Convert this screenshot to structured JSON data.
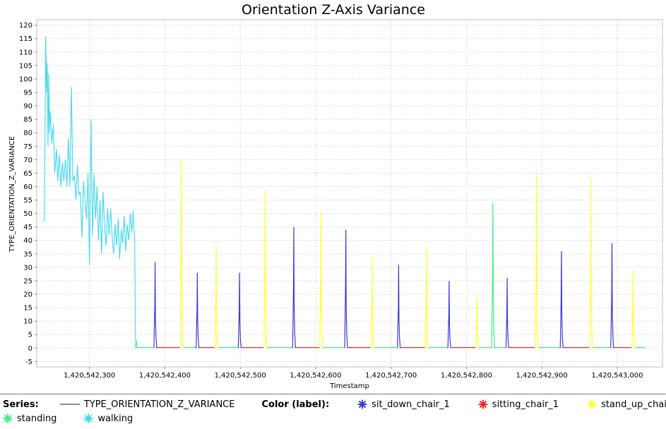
{
  "chart_data": {
    "type": "line",
    "title": "Orientation Z-Axis Variance",
    "xlabel": "Timestamp",
    "ylabel": "TYPE_ORIENTATION_Z_VARIANCE",
    "xlim": [
      1420542230,
      1420543060
    ],
    "ylim": [
      -7,
      122
    ],
    "x_ticks": [
      1420542300,
      1420542400,
      1420542500,
      1420542600,
      1420542700,
      1420542800,
      1420542900,
      1420543000
    ],
    "x_tick_labels": [
      "1,420,542,300",
      "1,420,542,400",
      "1,420,542,500",
      "1,420,542,600",
      "1,420,542,700",
      "1,420,542,800",
      "1,420,542,900",
      "1,420,543,000"
    ],
    "y_ticks": [
      -5,
      0,
      5,
      10,
      15,
      20,
      25,
      30,
      35,
      40,
      45,
      50,
      55,
      60,
      65,
      70,
      75,
      80,
      85,
      90,
      95,
      100,
      105,
      110,
      115,
      120
    ],
    "grid": true,
    "legend_position": "bottom",
    "colors": {
      "sit_down_chair_1": "#3a3ad6",
      "sitting_chair_1": "#ff2020",
      "stand_up_chair_1": "#ffff30",
      "standing": "#40ee80",
      "walking": "#40d8ee"
    },
    "walking_keypoints": [
      [
        1420542240,
        47
      ],
      [
        1420542241,
        80
      ],
      [
        1420542242,
        116
      ],
      [
        1420542243,
        95
      ],
      [
        1420542244,
        106
      ],
      [
        1420542245,
        75
      ],
      [
        1420542246,
        102
      ],
      [
        1420542247,
        80
      ],
      [
        1420542248,
        88
      ],
      [
        1420542250,
        76
      ],
      [
        1420542252,
        83
      ],
      [
        1420542254,
        65
      ],
      [
        1420542256,
        74
      ],
      [
        1420542258,
        62
      ],
      [
        1420542260,
        72
      ],
      [
        1420542262,
        60
      ],
      [
        1420542264,
        69
      ],
      [
        1420542266,
        62
      ],
      [
        1420542268,
        70
      ],
      [
        1420542270,
        60
      ],
      [
        1420542272,
        78
      ],
      [
        1420542274,
        60
      ],
      [
        1420542276,
        97
      ],
      [
        1420542278,
        62
      ],
      [
        1420542280,
        64
      ],
      [
        1420542282,
        55
      ],
      [
        1420542284,
        68
      ],
      [
        1420542286,
        57
      ],
      [
        1420542288,
        58
      ],
      [
        1420542290,
        41
      ],
      [
        1420542292,
        62
      ],
      [
        1420542294,
        55
      ],
      [
        1420542296,
        48
      ],
      [
        1420542298,
        65
      ],
      [
        1420542300,
        31
      ],
      [
        1420542302,
        85
      ],
      [
        1420542304,
        42
      ],
      [
        1420542306,
        65
      ],
      [
        1420542308,
        48
      ],
      [
        1420542310,
        60
      ],
      [
        1420542312,
        40
      ],
      [
        1420542314,
        55
      ],
      [
        1420542316,
        35
      ],
      [
        1420542318,
        58
      ],
      [
        1420542320,
        45
      ],
      [
        1420542322,
        38
      ],
      [
        1420542324,
        52
      ],
      [
        1420542326,
        42
      ],
      [
        1420542328,
        52
      ],
      [
        1420542330,
        42
      ],
      [
        1420542332,
        35
      ],
      [
        1420542334,
        46
      ],
      [
        1420542336,
        38
      ],
      [
        1420542338,
        48
      ],
      [
        1420542340,
        33
      ],
      [
        1420542342,
        44
      ],
      [
        1420542344,
        39
      ],
      [
        1420542346,
        49
      ],
      [
        1420542348,
        36
      ],
      [
        1420542350,
        46
      ],
      [
        1420542352,
        40
      ],
      [
        1420542354,
        50
      ],
      [
        1420542356,
        43
      ],
      [
        1420542358,
        51
      ],
      [
        1420542360,
        38
      ],
      [
        1420542361,
        3
      ],
      [
        1420542362,
        2
      ],
      [
        1420542363,
        0
      ]
    ],
    "peaks": [
      {
        "label": "standing",
        "x": 1420542362,
        "y": 3
      },
      {
        "label": "sit_down_chair_1",
        "x": 1420542387,
        "y": 32
      },
      {
        "label": "stand_up_chair_1",
        "x": 1420542422,
        "y": 70
      },
      {
        "label": "sit_down_chair_1",
        "x": 1420542443,
        "y": 28
      },
      {
        "label": "stand_up_chair_1",
        "x": 1420542468,
        "y": 38
      },
      {
        "label": "sit_down_chair_1",
        "x": 1420542499,
        "y": 28
      },
      {
        "label": "stand_up_chair_1",
        "x": 1420542533,
        "y": 59
      },
      {
        "label": "sit_down_chair_1",
        "x": 1420542571,
        "y": 45
      },
      {
        "label": "stand_up_chair_1",
        "x": 1420542607,
        "y": 50
      },
      {
        "label": "sit_down_chair_1",
        "x": 1420542640,
        "y": 44
      },
      {
        "label": "stand_up_chair_1",
        "x": 1420542675,
        "y": 34
      },
      {
        "label": "sit_down_chair_1",
        "x": 1420542710,
        "y": 31
      },
      {
        "label": "stand_up_chair_1",
        "x": 1420542747,
        "y": 38
      },
      {
        "label": "sit_down_chair_1",
        "x": 1420542777,
        "y": 25
      },
      {
        "label": "stand_up_chair_1",
        "x": 1420542814,
        "y": 19
      },
      {
        "label": "standing",
        "x": 1420542835,
        "y": 54
      },
      {
        "label": "sit_down_chair_1",
        "x": 1420542854,
        "y": 26
      },
      {
        "label": "stand_up_chair_1",
        "x": 1420542893,
        "y": 65
      },
      {
        "label": "sit_down_chair_1",
        "x": 1420542926,
        "y": 36
      },
      {
        "label": "stand_up_chair_1",
        "x": 1420542965,
        "y": 63
      },
      {
        "label": "sit_down_chair_1",
        "x": 1420542993,
        "y": 39
      },
      {
        "label": "stand_up_chair_1",
        "x": 1420543021,
        "y": 29
      }
    ]
  },
  "legend": {
    "series_heading": "Series:",
    "series_name": "TYPE_ORIENTATION_Z_VARIANCE",
    "color_heading": "Color (label):",
    "labels": [
      {
        "key": "sit_down_chair_1",
        "text": "sit_down_chair_1"
      },
      {
        "key": "sitting_chair_1",
        "text": "sitting_chair_1"
      },
      {
        "key": "stand_up_chair_1",
        "text": "stand_up_chair_1"
      },
      {
        "key": "standing",
        "text": "standing"
      },
      {
        "key": "walking",
        "text": "walking"
      }
    ]
  }
}
